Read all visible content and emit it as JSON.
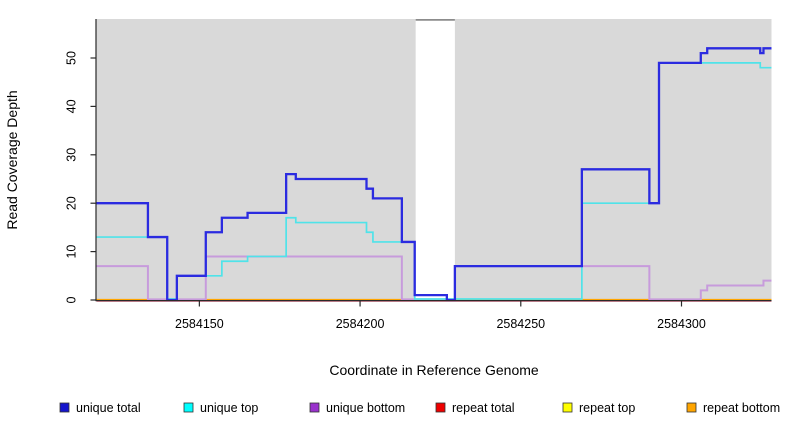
{
  "y_axis": {
    "label": "Read Coverage Depth",
    "ticks": [
      {
        "value": 0,
        "label": "0"
      },
      {
        "value": 10,
        "label": "10"
      },
      {
        "value": 20,
        "label": "20"
      },
      {
        "value": 30,
        "label": "30"
      },
      {
        "value": 40,
        "label": "40"
      },
      {
        "value": 50,
        "label": "50"
      }
    ]
  },
  "x_axis": {
    "label": "Coordinate in Reference Genome",
    "ticks": [
      {
        "value": 2584150,
        "label": "2584150"
      },
      {
        "value": 2584200,
        "label": "2584200"
      },
      {
        "value": 2584250,
        "label": "2584250"
      },
      {
        "value": 2584300,
        "label": "2584300"
      }
    ]
  },
  "legend": [
    {
      "label": "unique total",
      "color": "#1414cc"
    },
    {
      "label": "unique top",
      "color": "#00ffff"
    },
    {
      "label": "unique bottom",
      "color": "#9932cc"
    },
    {
      "label": "repeat total",
      "color": "#ee0000"
    },
    {
      "label": "repeat top",
      "color": "#ffff00"
    },
    {
      "label": "repeat bottom",
      "color": "#ffa500"
    }
  ],
  "colors": {
    "panel_background": "#d9d9d9",
    "page_background": "#ffffff",
    "masked_band": "#ffffff",
    "masked_band_border": "#8c8c8c",
    "axis": "#2a2a2a"
  },
  "chart_data": {
    "type": "step-line",
    "title": "",
    "xlabel": "Coordinate in Reference Genome",
    "ylabel": "Read Coverage Depth",
    "x_range": [
      2584118,
      2584328
    ],
    "y_range": [
      0,
      58
    ],
    "grid": false,
    "legend_position": "bottom",
    "masked_region": {
      "x_start": 2584217.3,
      "x_end": 2584229.5,
      "color": "#ffffff"
    },
    "series": [
      {
        "name": "repeat total",
        "color": "#d03050",
        "line_width": 1.4,
        "steps": [
          [
            2584118,
            0
          ]
        ]
      },
      {
        "name": "repeat top",
        "color": "#ffff00",
        "line_width": 1.2,
        "steps": [
          [
            2584118,
            0
          ]
        ]
      },
      {
        "name": "repeat bottom",
        "color": "#ffa500",
        "line_width": 2.0,
        "steps": [
          [
            2584118,
            0
          ]
        ]
      },
      {
        "name": "unique bottom",
        "color": "#c79bdc",
        "line_width": 2.0,
        "steps": [
          [
            2584118,
            7
          ],
          [
            2584134,
            0
          ],
          [
            2584152,
            9
          ],
          [
            2584213,
            0
          ],
          [
            2584229.5,
            7
          ],
          [
            2584290,
            0
          ],
          [
            2584306,
            2
          ],
          [
            2584308,
            3
          ],
          [
            2584325.5,
            4
          ]
        ]
      },
      {
        "name": "unique top",
        "color": "#4fe3e9",
        "line_width": 1.7,
        "steps": [
          [
            2584118,
            13
          ],
          [
            2584140,
            0
          ],
          [
            2584143,
            5
          ],
          [
            2584157,
            8
          ],
          [
            2584165,
            9
          ],
          [
            2584177,
            17
          ],
          [
            2584180,
            16
          ],
          [
            2584202,
            14
          ],
          [
            2584204,
            12
          ],
          [
            2584217,
            0
          ],
          [
            2584269,
            20
          ],
          [
            2584293,
            49
          ],
          [
            2584324.5,
            48
          ]
        ]
      },
      {
        "name": "unique total",
        "color": "#2b2be0",
        "line_width": 2.3,
        "steps": [
          [
            2584118,
            20
          ],
          [
            2584134,
            13
          ],
          [
            2584140,
            0
          ],
          [
            2584143,
            5
          ],
          [
            2584152,
            14
          ],
          [
            2584157,
            17
          ],
          [
            2584165,
            18
          ],
          [
            2584177,
            26
          ],
          [
            2584180,
            25
          ],
          [
            2584202,
            23
          ],
          [
            2584204,
            21
          ],
          [
            2584213,
            12
          ],
          [
            2584217,
            1
          ],
          [
            2584227,
            0
          ],
          [
            2584229.5,
            7
          ],
          [
            2584269,
            27
          ],
          [
            2584290,
            20
          ],
          [
            2584293,
            49
          ],
          [
            2584306,
            51
          ],
          [
            2584308,
            52
          ],
          [
            2584324.5,
            51
          ],
          [
            2584325.5,
            52
          ]
        ]
      }
    ]
  }
}
